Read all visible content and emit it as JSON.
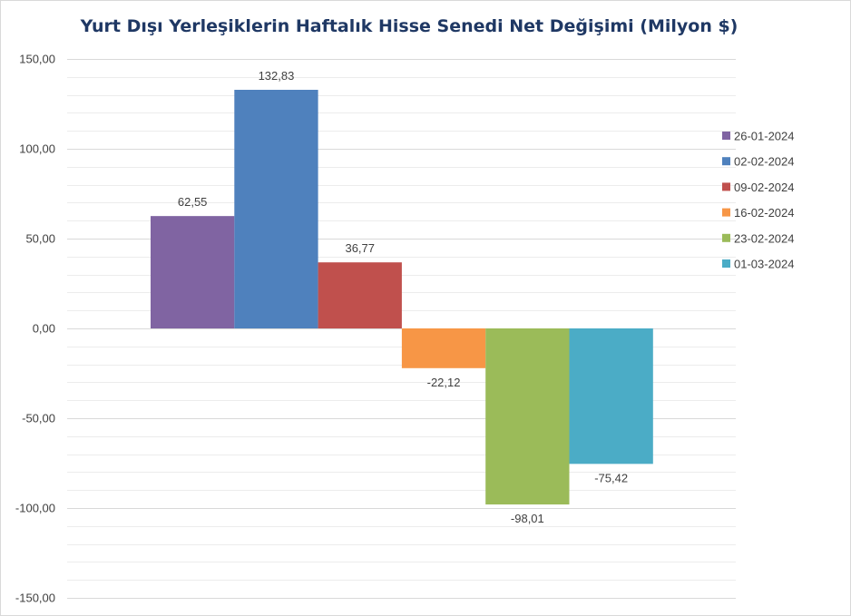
{
  "chart_data": {
    "type": "bar",
    "title": "Yurt Dışı Yerleşiklerin Haftalık Hisse Senedi Net Değişimi (Milyon $)",
    "xlabel": "",
    "ylabel": "",
    "ylim": [
      -150,
      150
    ],
    "yticks": [
      "150,00",
      "100,00",
      "50,00",
      "0,00",
      "-50,00",
      "-100,00",
      "-150,00"
    ],
    "ytick_values": [
      150,
      100,
      50,
      0,
      -50,
      -100,
      -150
    ],
    "grid": true,
    "legend_position": "right",
    "series": [
      {
        "name": "26-01-2024",
        "value": 62.55,
        "label": "62,55",
        "color": "#8064a2"
      },
      {
        "name": "02-02-2024",
        "value": 132.83,
        "label": "132,83",
        "color": "#4f81bd"
      },
      {
        "name": "09-02-2024",
        "value": 36.77,
        "label": "36,77",
        "color": "#c0504d"
      },
      {
        "name": "16-02-2024",
        "value": -22.12,
        "label": "-22,12",
        "color": "#f79646"
      },
      {
        "name": "23-02-2024",
        "value": -98.01,
        "label": "-98,01",
        "color": "#9bbb59"
      },
      {
        "name": "01-03-2024",
        "value": -75.42,
        "label": "-75,42",
        "color": "#4bacc6"
      }
    ]
  }
}
